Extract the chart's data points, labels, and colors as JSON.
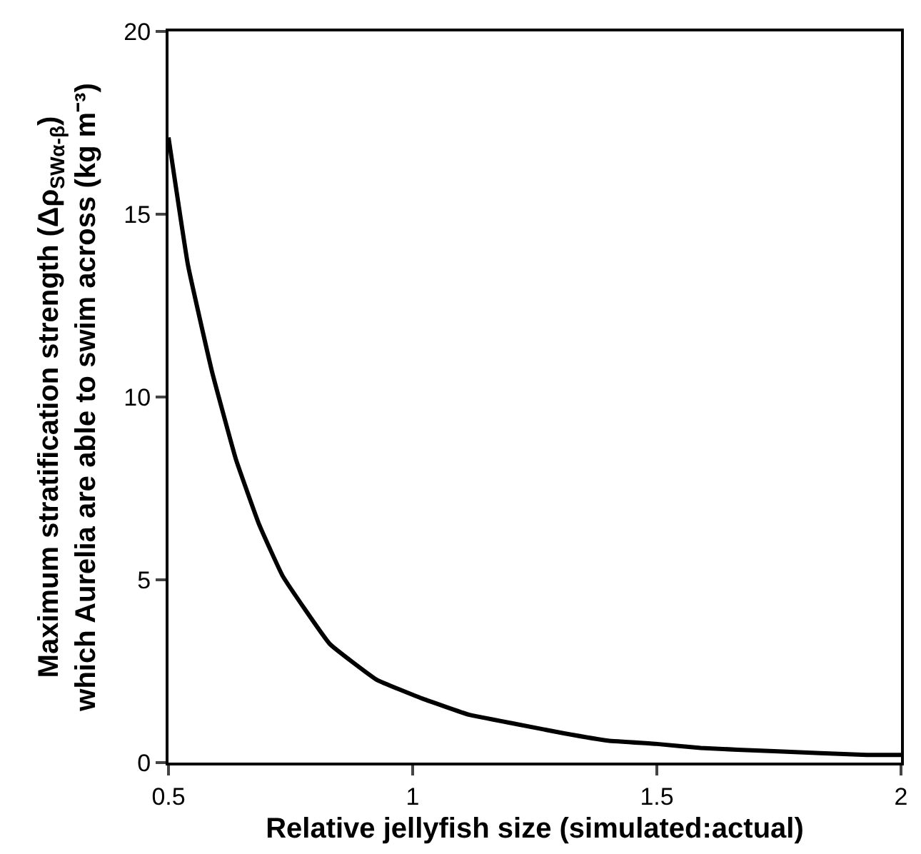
{
  "chart_data": {
    "type": "line",
    "xlabel": "Relative jellyfish size (simulated:actual)",
    "ylabel": "Maximum stratification strength (Δρ$_{SWα-β}$)\nwhich Aurelia are able to swim across (kg m⁻³)",
    "x": [
      0.5,
      0.54,
      0.589,
      0.638,
      0.686,
      0.734,
      0.83,
      0.926,
      1.02,
      1.115,
      1.21,
      1.31,
      1.4,
      1.5,
      1.59,
      1.74,
      1.93,
      2
    ],
    "series": [
      {
        "color": "#000000",
        "values": [
          17.1,
          13.6,
          10.7,
          8.3,
          6.5,
          5.1,
          3.25,
          2.27,
          1.75,
          1.31,
          1.06,
          0.8,
          0.6,
          0.51,
          0.4,
          0.31,
          0.21,
          0.21
        ]
      }
    ],
    "xlim": [
      0.5,
      2
    ],
    "xticks": [
      0.5,
      1,
      1.5,
      2
    ],
    "ylim": [
      0,
      20
    ],
    "yticks": [
      0,
      5,
      10,
      15,
      20
    ],
    "grid": false,
    "marker": "none",
    "line_style": "solid"
  }
}
